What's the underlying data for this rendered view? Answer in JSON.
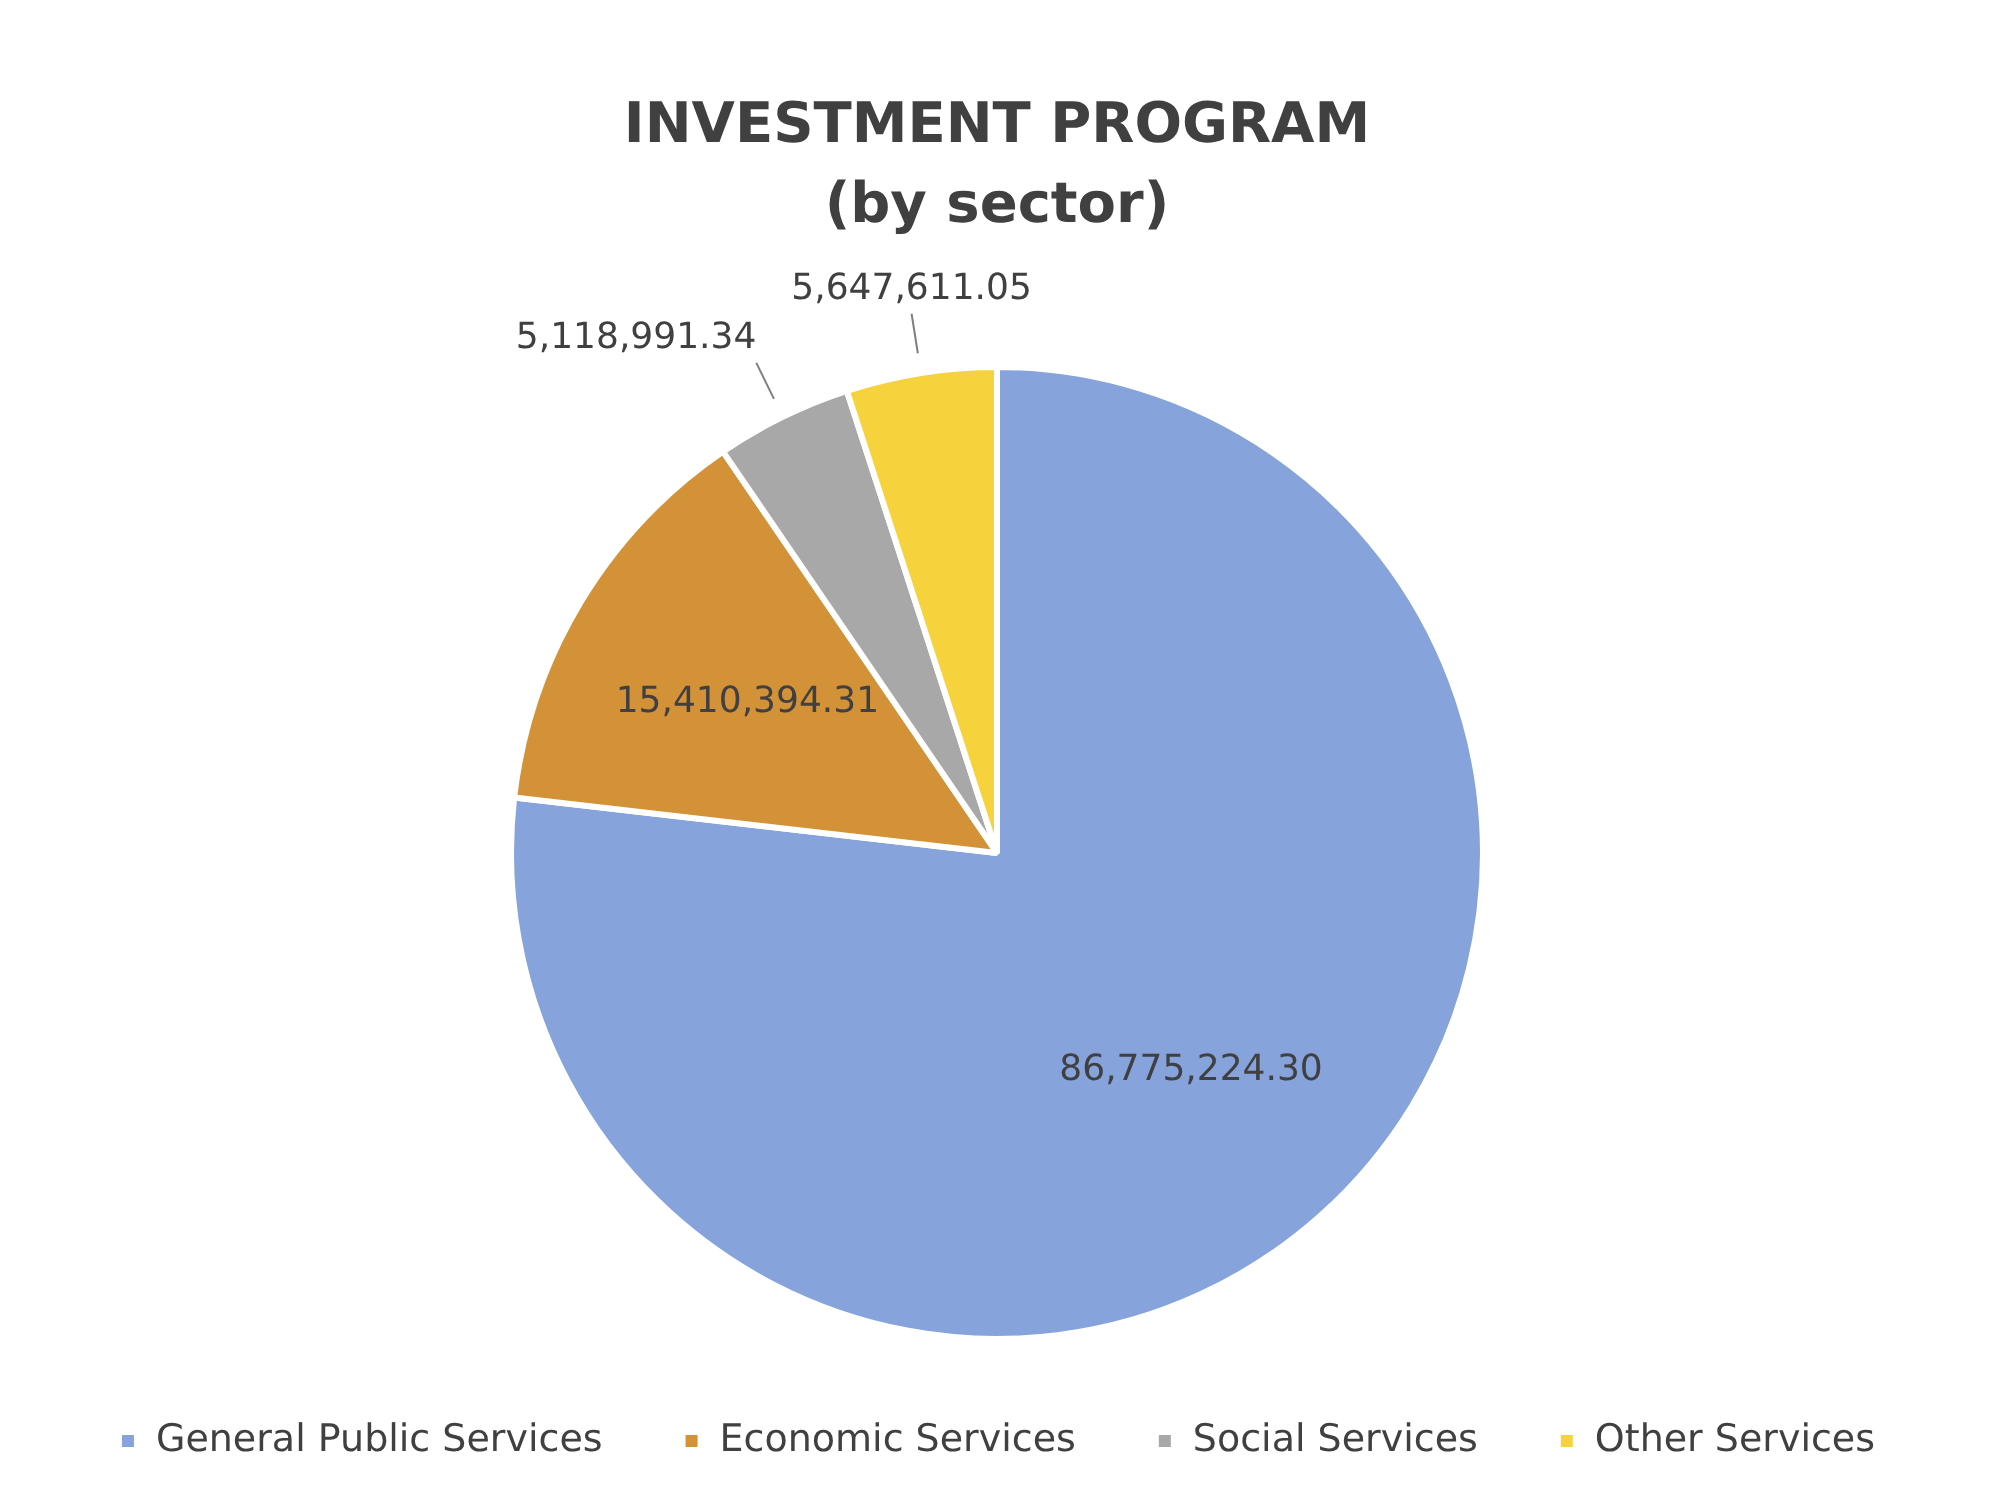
{
  "chart_data": {
    "type": "pie",
    "title": "INVESTMENT PROGRAM",
    "subtitle": "(by sector)",
    "categories": [
      "General Public Services",
      "Economic Services",
      "Social Services",
      "Other Services"
    ],
    "values": [
      86775224.3,
      15410394.31,
      5118991.34,
      5647611.05
    ],
    "value_labels": [
      "86,775,224.30",
      "15,410,394.31",
      "5,118,991.34",
      "5,647,611.05"
    ],
    "colors": [
      "#86a3dc",
      "#d39238",
      "#a8a8a8",
      "#f6d23c"
    ],
    "legend": "bottom"
  }
}
